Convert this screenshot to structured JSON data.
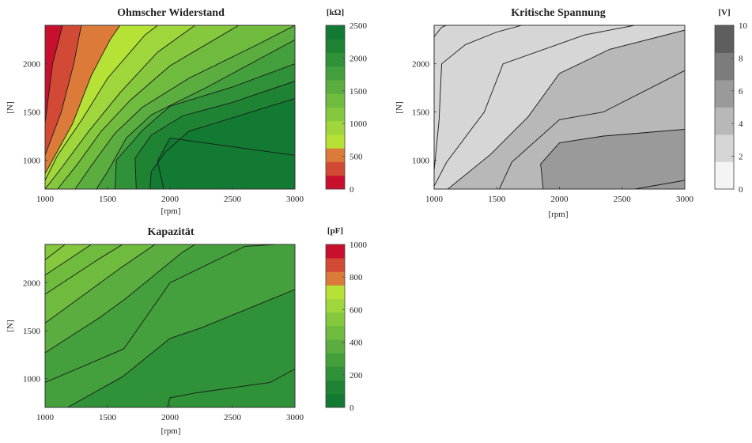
{
  "chart_data": [
    {
      "type": "heatmap",
      "subtype": "filled-contour",
      "title": "Ohmscher Widerstand",
      "xlabel": "[rpm]",
      "ylabel": "[N]",
      "xlim": [
        1000,
        3000
      ],
      "ylim": [
        700,
        2400
      ],
      "xticks": [
        "1000",
        "1500",
        "2000",
        "2500",
        "3000"
      ],
      "yticks": [
        "1000",
        "1500",
        "2000"
      ],
      "colorbar": {
        "unit": "[kΩ]",
        "range": [
          0,
          2500
        ],
        "ticks": [
          "0",
          "500",
          "1000",
          "1500",
          "2000",
          "2500"
        ],
        "colors": [
          "#c8102e",
          "#d24a35",
          "#dc7a3a",
          "#b6e236",
          "#9ed63b",
          "#86c83d",
          "#6fbb3e",
          "#5aad3e",
          "#44a03d",
          "#309238",
          "#1e8434",
          "#127a32"
        ]
      },
      "levels": [
        {
          "level": 200,
          "points": [
            [
              1000,
              1380
            ],
            [
              1060,
              2000
            ],
            [
              1140,
              2400
            ]
          ]
        },
        {
          "level": 400,
          "points": [
            [
              1000,
              1050
            ],
            [
              1130,
              1500
            ],
            [
              1230,
              2000
            ],
            [
              1290,
              2400
            ]
          ]
        },
        {
          "level": 600,
          "points": [
            [
              1000,
              860
            ],
            [
              1220,
              1380
            ],
            [
              1370,
              1880
            ],
            [
              1520,
              2250
            ],
            [
              1600,
              2400
            ]
          ]
        },
        {
          "level": 800,
          "points": [
            [
              1000,
              790
            ],
            [
              1100,
              1050
            ],
            [
              1300,
              1430
            ],
            [
              1500,
              1850
            ],
            [
              1800,
              2300
            ],
            [
              1900,
              2400
            ]
          ]
        },
        {
          "level": 1000,
          "points": [
            [
              1000,
              700
            ],
            [
              1120,
              900
            ],
            [
              1350,
              1300
            ],
            [
              1600,
              1700
            ],
            [
              1900,
              2120
            ],
            [
              2200,
              2400
            ]
          ]
        },
        {
          "level": 1200,
          "points": [
            [
              1100,
              700
            ],
            [
              1260,
              960
            ],
            [
              1450,
              1300
            ],
            [
              1680,
              1620
            ],
            [
              2000,
              1980
            ],
            [
              2550,
              2400
            ]
          ]
        },
        {
          "level": 1400,
          "points": [
            [
              1240,
              700
            ],
            [
              1380,
              960
            ],
            [
              1560,
              1280
            ],
            [
              1780,
              1550
            ],
            [
              2150,
              1850
            ],
            [
              2700,
              2200
            ],
            [
              3000,
              2400
            ]
          ]
        },
        {
          "level": 1600,
          "points": [
            [
              1410,
              700
            ],
            [
              1500,
              880
            ],
            [
              1650,
              1230
            ],
            [
              1850,
              1470
            ],
            [
              2300,
              1760
            ],
            [
              3000,
              2250
            ]
          ]
        },
        {
          "level": 1800,
          "points": [
            [
              1560,
              700
            ],
            [
              1570,
              1000
            ],
            [
              1780,
              1310
            ],
            [
              2000,
              1560
            ],
            [
              2500,
              1760
            ],
            [
              3000,
              2000
            ]
          ]
        },
        {
          "level": 2000,
          "points": [
            [
              1730,
              700
            ],
            [
              1720,
              1020
            ],
            [
              1850,
              1260
            ],
            [
              2100,
              1460
            ],
            [
              2500,
              1600
            ],
            [
              3000,
              1820
            ]
          ]
        },
        {
          "level": 2200,
          "points": [
            [
              1840,
              700
            ],
            [
              1850,
              880
            ],
            [
              1960,
              1080
            ],
            [
              2150,
              1300
            ],
            [
              3000,
              1640
            ]
          ]
        },
        {
          "level": 2400,
          "points": [
            [
              1950,
              700
            ],
            [
              1900,
              990
            ],
            [
              2000,
              1230
            ],
            [
              3000,
              1050
            ]
          ]
        }
      ]
    },
    {
      "type": "heatmap",
      "subtype": "filled-contour",
      "title": "Kritische Spannung",
      "xlabel": "[rpm]",
      "ylabel": "[N]",
      "xlim": [
        1000,
        3000
      ],
      "ylim": [
        700,
        2400
      ],
      "xticks": [
        "1000",
        "1500",
        "2000",
        "2500",
        "3000"
      ],
      "yticks": [
        "1000",
        "1500",
        "2000"
      ],
      "colorbar": {
        "unit": "[V]",
        "range": [
          0,
          10
        ],
        "ticks": [
          "0",
          "2",
          "4",
          "6",
          "8",
          "10"
        ],
        "colors": [
          "#f4f4f4",
          "#d6d6d6",
          "#b8b8b8",
          "#9a9a9a",
          "#7c7c7c",
          "#5e5e5e"
        ]
      },
      "levels": [
        {
          "level": 2.0,
          "points": [
            [
              1000,
              2280
            ],
            [
              1060,
              2380
            ],
            [
              1100,
              2400
            ]
          ]
        },
        {
          "level": 2.5,
          "points": [
            [
              1000,
              890
            ],
            [
              1040,
              1420
            ],
            [
              1060,
              2000
            ],
            [
              1250,
              2200
            ],
            [
              1500,
              2330
            ],
            [
              1700,
              2400
            ]
          ]
        },
        {
          "level": 3.0,
          "points": [
            [
              1000,
              730
            ],
            [
              1100,
              980
            ],
            [
              1400,
              1500
            ],
            [
              1550,
              2000
            ],
            [
              2200,
              2300
            ],
            [
              2600,
              2400
            ]
          ]
        },
        {
          "level": 3.5,
          "points": [
            [
              1110,
              700
            ],
            [
              1450,
              1060
            ],
            [
              1750,
              1450
            ],
            [
              2000,
              1900
            ],
            [
              2400,
              2150
            ],
            [
              3000,
              2350
            ]
          ]
        },
        {
          "level": 4.0,
          "points": [
            [
              1520,
              700
            ],
            [
              1620,
              980
            ],
            [
              2000,
              1420
            ],
            [
              2350,
              1500
            ],
            [
              3000,
              1930
            ]
          ]
        },
        {
          "level": 5.0,
          "points": [
            [
              1870,
              700
            ],
            [
              1850,
              960
            ],
            [
              2000,
              1180
            ],
            [
              2350,
              1250
            ],
            [
              3000,
              1320
            ]
          ]
        },
        {
          "level": 6.0,
          "points": [
            [
              2600,
              700
            ],
            [
              3000,
              790
            ]
          ]
        }
      ]
    },
    {
      "type": "heatmap",
      "subtype": "filled-contour",
      "title": "Kapazität",
      "xlabel": "[rpm]",
      "ylabel": "[N]",
      "xlim": [
        1000,
        3000
      ],
      "ylim": [
        700,
        2400
      ],
      "xticks": [
        "1000",
        "1500",
        "2000",
        "2500",
        "3000"
      ],
      "yticks": [
        "1000",
        "1500",
        "2000"
      ],
      "colorbar": {
        "unit": "[pF]",
        "range": [
          0,
          1000
        ],
        "ticks": [
          "0",
          "200",
          "400",
          "600",
          "800",
          "1000"
        ],
        "colors": [
          "#127a32",
          "#1e8434",
          "#309238",
          "#44a03d",
          "#5aad3e",
          "#6fbb3e",
          "#86c83d",
          "#9ed63b",
          "#b6e236",
          "#dc7a3a",
          "#d24a35",
          "#c8102e"
        ]
      },
      "levels": [
        {
          "level": 550,
          "points": [
            [
              1000,
              2240
            ],
            [
              1160,
              2400
            ]
          ]
        },
        {
          "level": 500,
          "points": [
            [
              1000,
              2080
            ],
            [
              1370,
              2400
            ]
          ]
        },
        {
          "level": 450,
          "points": [
            [
              1000,
              1880
            ],
            [
              1420,
              2240
            ],
            [
              1620,
              2400
            ]
          ]
        },
        {
          "level": 400,
          "points": [
            [
              1000,
              1580
            ],
            [
              1600,
              2150
            ],
            [
              1880,
              2400
            ]
          ]
        },
        {
          "level": 350,
          "points": [
            [
              1000,
              1270
            ],
            [
              1430,
              1630
            ],
            [
              1650,
              1840
            ],
            [
              2100,
              2320
            ],
            [
              2200,
              2400
            ]
          ]
        },
        {
          "level": 300,
          "points": [
            [
              1000,
              960
            ],
            [
              1630,
              1310
            ],
            [
              2000,
              2000
            ],
            [
              2600,
              2380
            ],
            [
              2850,
              2400
            ]
          ]
        },
        {
          "level": 250,
          "points": [
            [
              1180,
              700
            ],
            [
              1620,
              1020
            ],
            [
              2000,
              1420
            ],
            [
              2250,
              1530
            ],
            [
              3000,
              1930
            ]
          ]
        },
        {
          "level": 200,
          "points": [
            [
              1980,
              700
            ],
            [
              2000,
              800
            ],
            [
              2200,
              850
            ],
            [
              2800,
              960
            ],
            [
              3000,
              1100
            ]
          ]
        }
      ]
    }
  ]
}
